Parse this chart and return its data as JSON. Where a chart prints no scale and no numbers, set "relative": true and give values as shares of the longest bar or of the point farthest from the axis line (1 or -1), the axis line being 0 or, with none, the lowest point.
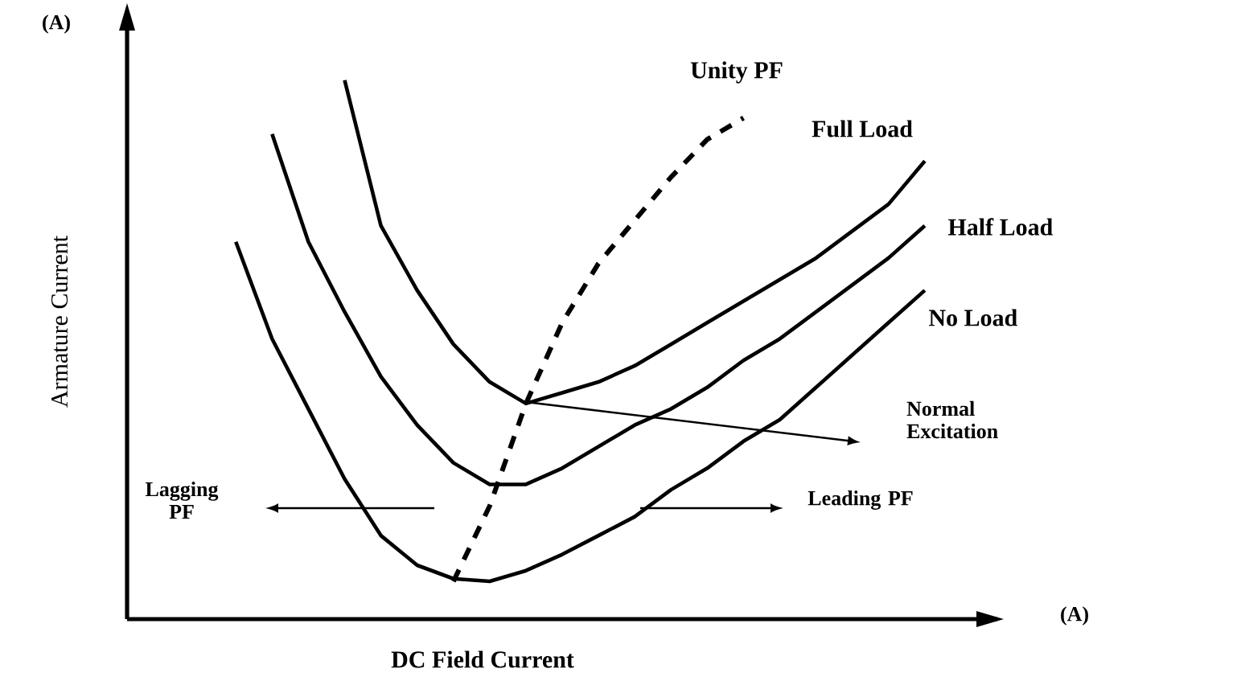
{
  "chart_data": {
    "type": "line",
    "relative": true,
    "tick_labels": false,
    "xlabel": "DC Field Current",
    "ylabel": "Armature Current",
    "annotations": [
      "(A)",
      "(A)",
      "Lagging PF",
      "Normal Excitation",
      "Leading PF"
    ],
    "categories": [
      null,
      null,
      null,
      null,
      null,
      null,
      null,
      null,
      null,
      null,
      null,
      null,
      null,
      null,
      null,
      null,
      null,
      null,
      null,
      null,
      null,
      null,
      null,
      null,
      null
    ],
    "series": [
      {
        "name": "Unity PF",
        "color": "#000000",
        "line_style": "dashed",
        "values": [
          null,
          null,
          null,
          null,
          null,
          null,
          null,
          null,
          null,
          0.07,
          0.21,
          0.4,
          0.55,
          0.66,
          0.74,
          0.82,
          0.89,
          0.93,
          null,
          null,
          null,
          null,
          null,
          null,
          null
        ]
      },
      {
        "name": "Full Load",
        "color": "#000000",
        "line_style": "solid",
        "values": [
          null,
          null,
          null,
          null,
          null,
          null,
          1.0,
          0.73,
          0.61,
          0.51,
          0.44,
          0.4,
          0.42,
          0.44,
          0.47,
          0.51,
          0.55,
          0.59,
          0.63,
          0.67,
          0.72,
          0.77,
          0.85,
          null,
          null
        ]
      },
      {
        "name": "Half Load",
        "color": "#000000",
        "line_style": "solid",
        "values": [
          null,
          null,
          null,
          null,
          0.9,
          0.7,
          0.57,
          0.45,
          0.36,
          0.29,
          0.25,
          0.25,
          0.28,
          0.32,
          0.36,
          0.39,
          0.43,
          0.48,
          0.52,
          0.57,
          0.62,
          0.67,
          0.73,
          null,
          null
        ]
      },
      {
        "name": "No Load",
        "color": "#000000",
        "line_style": "solid",
        "values": [
          null,
          null,
          null,
          0.7,
          0.52,
          0.39,
          0.26,
          0.155,
          0.1,
          0.075,
          0.07,
          0.09,
          0.12,
          0.155,
          0.19,
          0.24,
          0.28,
          0.33,
          0.37,
          0.43,
          0.49,
          0.55,
          0.61,
          null,
          null
        ]
      }
    ]
  }
}
